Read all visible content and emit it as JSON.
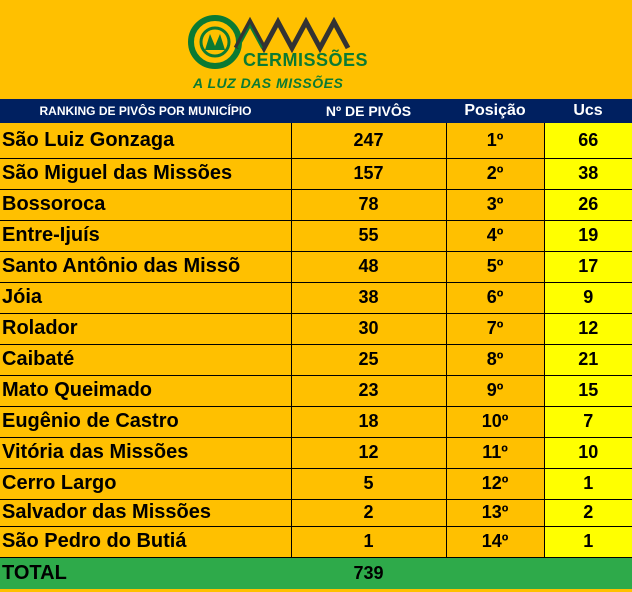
{
  "header": {
    "logo_name": "CERMISSÕES",
    "logo_slogan": "A LUZ DAS MISSÕES",
    "colors": {
      "logo_green": "#0B7A33",
      "background": "#FFC000"
    }
  },
  "table": {
    "columns": [
      "RANKING DE PIVÔS POR MUNICÍPIO",
      "Nº DE PIVÔS",
      "Posição",
      "Ucs"
    ],
    "rows": [
      {
        "municipio": "São Luiz Gonzaga",
        "pivos": "247",
        "posicao": "1º",
        "ucs": "66"
      },
      {
        "municipio": "São Miguel das Missões",
        "pivos": "157",
        "posicao": "2º",
        "ucs": "38"
      },
      {
        "municipio": "Bossoroca",
        "pivos": "78",
        "posicao": "3º",
        "ucs": "26"
      },
      {
        "municipio": "Entre-Ijuís",
        "pivos": "55",
        "posicao": "4º",
        "ucs": "19"
      },
      {
        "municipio": "Santo Antônio das Missõ",
        "pivos": "48",
        "posicao": "5º",
        "ucs": "17"
      },
      {
        "municipio": "Jóia",
        "pivos": "38",
        "posicao": "6º",
        "ucs": "9"
      },
      {
        "municipio": "Rolador",
        "pivos": "30",
        "posicao": "7º",
        "ucs": "12"
      },
      {
        "municipio": "Caibaté",
        "pivos": "25",
        "posicao": "8º",
        "ucs": "21"
      },
      {
        "municipio": "Mato Queimado",
        "pivos": "23",
        "posicao": "9º",
        "ucs": "15"
      },
      {
        "municipio": "Eugênio de Castro",
        "pivos": "18",
        "posicao": "10º",
        "ucs": "7"
      },
      {
        "municipio": "Vitória das Missões",
        "pivos": "12",
        "posicao": "11º",
        "ucs": "10"
      },
      {
        "municipio": "Cerro Largo",
        "pivos": "5",
        "posicao": "12º",
        "ucs": "1"
      },
      {
        "municipio": "Salvador das Missões",
        "pivos": "2",
        "posicao": "13º",
        "ucs": "2"
      },
      {
        "municipio": "São Pedro do Butiá",
        "pivos": "1",
        "posicao": "14º",
        "ucs": "1"
      }
    ],
    "total": {
      "label": "TOTAL",
      "pivos": "739"
    },
    "colors": {
      "header_bg": "#002060",
      "ucs_bg": "#FFFF00",
      "total_bg": "#2EAA4A",
      "row_bg": "#FFC000"
    }
  }
}
